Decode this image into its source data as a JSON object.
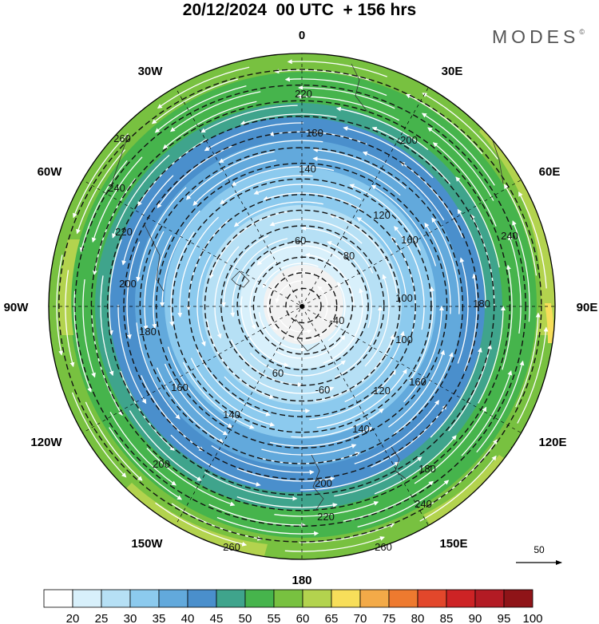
{
  "title": "20/12/2024  00 UTC  + 156 hrs",
  "logo": "MODES",
  "logo_mark": "©",
  "longitude_labels": {
    "n": "0",
    "e30": "30E",
    "e60": "60E",
    "e90": "90E",
    "e120": "120E",
    "e150": "150E",
    "s": "180",
    "w150": "150W",
    "w120": "120W",
    "w90": "90W",
    "w60": "60W",
    "w30": "30W"
  },
  "reference_vector": "50",
  "contour_values": [
    "-60",
    "-60",
    "-40",
    "60",
    "80",
    "100",
    "100",
    "120",
    "120",
    "140",
    "140",
    "140",
    "160",
    "160",
    "180",
    "180",
    "180",
    "200",
    "200",
    "220",
    "220",
    "240",
    "240",
    "260",
    "260",
    "160",
    "180",
    "200",
    "200",
    "220",
    "240",
    "260"
  ],
  "colorbar": {
    "labels": [
      "20",
      "25",
      "30",
      "35",
      "40",
      "45",
      "50",
      "55",
      "60",
      "65",
      "70",
      "75",
      "80",
      "85",
      "90",
      "95",
      "100"
    ],
    "colors": [
      "#ffffff",
      "#d8f0fb",
      "#b6e0f5",
      "#8ccaee",
      "#62a9dc",
      "#4a8fcc",
      "#3fa48c",
      "#46b44c",
      "#78c140",
      "#b3d34e",
      "#f7de5a",
      "#f3aa48",
      "#ee7a2f",
      "#e2472b",
      "#cd2325",
      "#b31b24",
      "#8f1418"
    ]
  },
  "colors": {
    "contour": "#111111",
    "streamline": "#ffffff",
    "coast": "#333333",
    "outline": "#000000"
  }
}
